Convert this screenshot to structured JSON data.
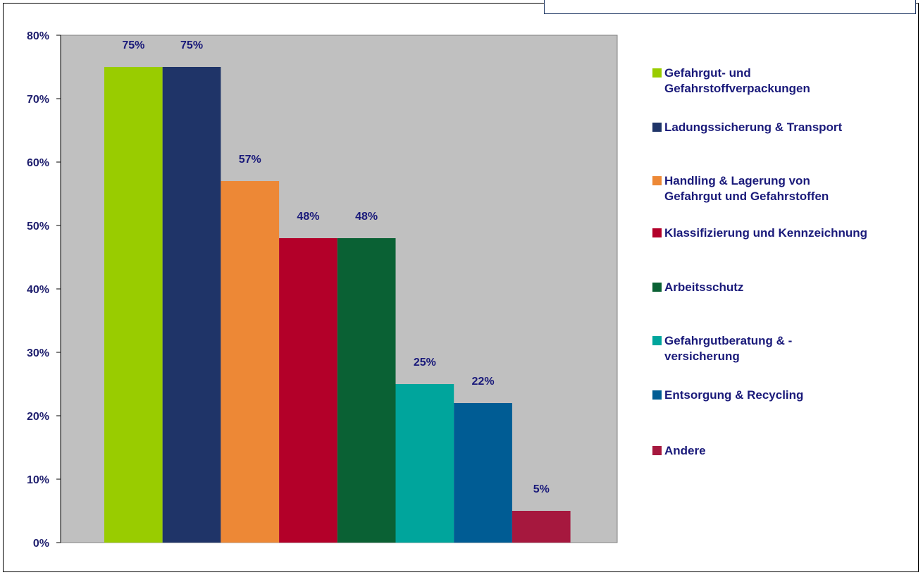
{
  "chart_data": {
    "type": "bar",
    "categories": [
      "Gefahrgut- und Gefahrstoffverpackungen",
      "Ladungssicherung & Transport",
      "Handling & Lagerung von Gefahrgut und Gefahrstoffen",
      "Klassifizierung und Kennzeichnung",
      "Arbeitsschutz",
      "Gefahrgutberatung & -versicherung",
      "Entsorgung & Recycling",
      "Andere"
    ],
    "values": [
      75,
      75,
      57,
      48,
      48,
      25,
      22,
      5
    ],
    "value_labels": [
      "75%",
      "75%",
      "57%",
      "48%",
      "48%",
      "25%",
      "22%",
      "5%"
    ],
    "colors": [
      "#99cc00",
      "#1f3468",
      "#ed8836",
      "#b30029",
      "#0a6134",
      "#00a59c",
      "#005c94",
      "#a6183e"
    ],
    "ylim": [
      0,
      80
    ],
    "yticks": [
      "0%",
      "10%",
      "20%",
      "30%",
      "40%",
      "50%",
      "60%",
      "70%",
      "80%"
    ],
    "plot_background": "#c0c0c0",
    "grid": false,
    "legend_placement": "right",
    "legend": [
      {
        "lines": [
          "Gefahrgut- und",
          "Gefahrstoffverpackungen"
        ],
        "color": "#99cc00"
      },
      {
        "lines": [
          "Ladungssicherung & Transport"
        ],
        "color": "#1f3468"
      },
      {
        "lines": [
          "Handling & Lagerung von",
          "Gefahrgut und Gefahrstoffen"
        ],
        "color": "#ed8836"
      },
      {
        "lines": [
          "Klassifizierung und Kennzeichnung"
        ],
        "color": "#b30029"
      },
      {
        "lines": [
          "Arbeitsschutz"
        ],
        "color": "#0a6134"
      },
      {
        "lines": [
          "Gefahrgutberatung & -",
          "versicherung"
        ],
        "color": "#00a59c"
      },
      {
        "lines": [
          "Entsorgung & Recycling"
        ],
        "color": "#005c94"
      },
      {
        "lines": [
          "Andere"
        ],
        "color": "#a6183e"
      }
    ]
  }
}
